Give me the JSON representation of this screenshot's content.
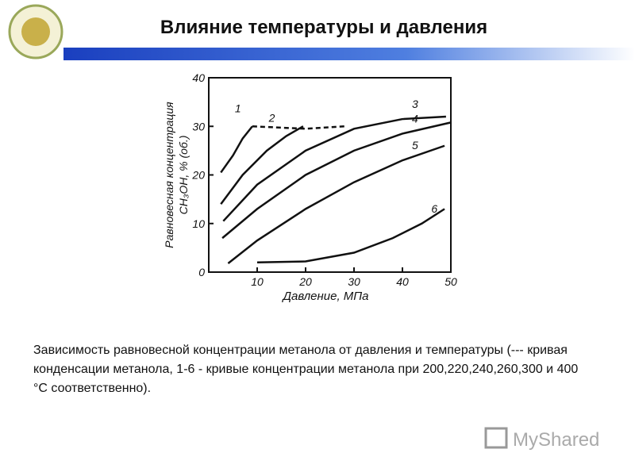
{
  "header": {
    "title": "Влияние температуры и давления"
  },
  "chart_data": {
    "type": "line",
    "xlabel": "Давление, МПа",
    "ylabel": [
      "Равновесная концентрация",
      "CH₃OH, % (об.)"
    ],
    "xlim": [
      0,
      50
    ],
    "ylim": [
      0,
      40
    ],
    "xticks": [
      10,
      20,
      30,
      40,
      50
    ],
    "yticks": [
      0,
      10,
      20,
      30,
      40
    ],
    "series": [
      {
        "name": "1",
        "color": "#111111",
        "x": [
          2.5,
          5,
          7,
          9
        ],
        "values": [
          20.5,
          24,
          27.5,
          30
        ]
      },
      {
        "name": "2",
        "color": "#111111",
        "x": [
          2.5,
          7,
          12,
          16,
          19.5
        ],
        "values": [
          14,
          20,
          25,
          28,
          30
        ]
      },
      {
        "name": "3",
        "color": "#111111",
        "x": [
          3,
          10,
          20,
          30,
          40,
          49
        ],
        "values": [
          10.5,
          18,
          25,
          29.5,
          31.5,
          32
        ]
      },
      {
        "name": "4",
        "color": "#111111",
        "x": [
          2.8,
          10,
          20,
          30,
          40,
          50
        ],
        "values": [
          7,
          13,
          20,
          25,
          28.5,
          30.8
        ]
      },
      {
        "name": "5",
        "color": "#111111",
        "x": [
          4,
          10,
          20,
          30,
          40,
          48.7
        ],
        "values": [
          1.8,
          6.5,
          13,
          18.5,
          23,
          26
        ]
      },
      {
        "name": "6",
        "color": "#111111",
        "x": [
          10,
          20,
          30,
          38,
          44,
          48.7
        ],
        "values": [
          2,
          2.2,
          4,
          7,
          10,
          13
        ]
      },
      {
        "color": "#111111",
        "dash": true,
        "x": [
          9,
          20,
          28
        ],
        "values": [
          30,
          29.5,
          30
        ]
      }
    ]
  },
  "caption": "Зависимость равновесной концентрации метанола от давления и температуры (--- кривая конденсации метанола, 1-6 - кривые концентрации метанола при 200,220,240,260,300 и 400 °С соответственно).",
  "watermark": "MyShared"
}
